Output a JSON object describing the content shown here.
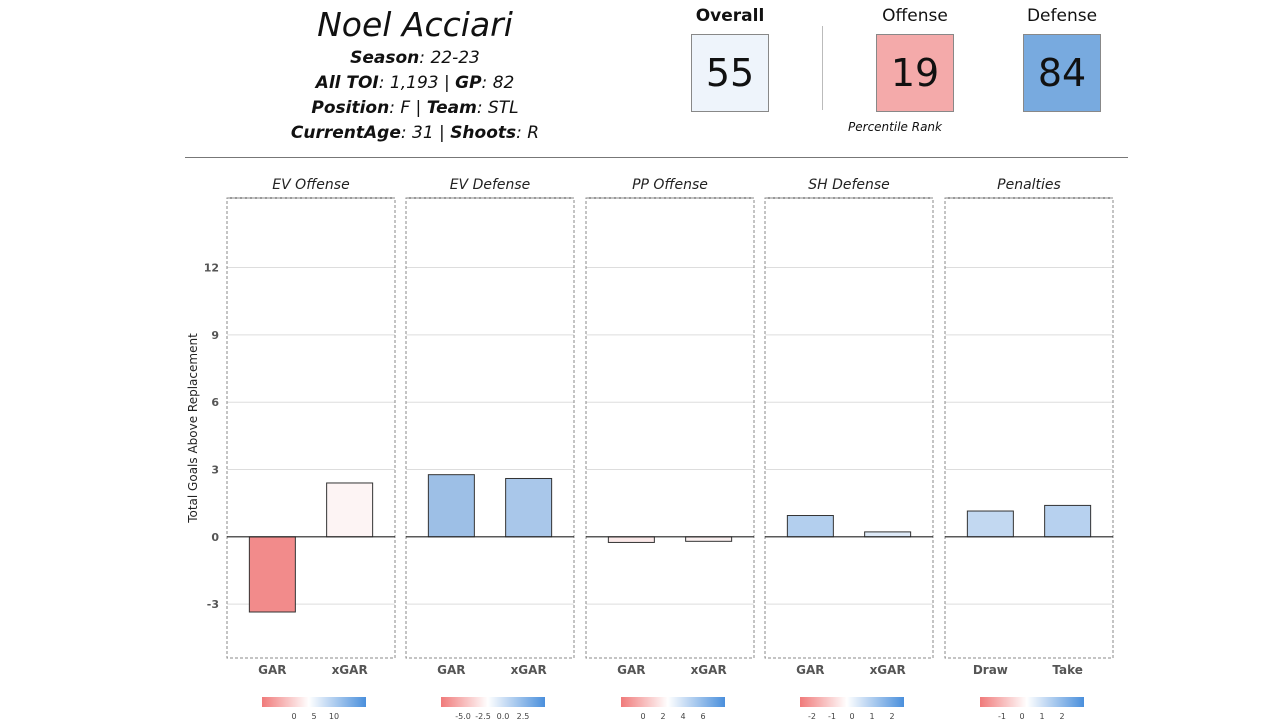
{
  "player": {
    "name": "Noel Acciari",
    "season_label": "Season",
    "season": "22-23",
    "toi_label": "All TOI",
    "toi": "1,193",
    "gp_label": "GP",
    "gp": "82",
    "position_label": "Position",
    "position": "F",
    "team_label": "Team",
    "team": "STL",
    "age_label": "CurrentAge",
    "age": "31",
    "shoots_label": "Shoots",
    "shoots": "R"
  },
  "scores": {
    "overall_label": "Overall",
    "overall": "55",
    "offense_label": "Offense",
    "offense": "19",
    "defense_label": "Defense",
    "defense": "84",
    "percentile_label": "Percentile Rank",
    "colors": {
      "overall": "#eef4fb",
      "offense": "#f4aaaa",
      "defense": "#78aadf"
    }
  },
  "chart_data": {
    "type": "bar",
    "ylabel": "Total Goals Above Replacement",
    "ylim": [
      -5.4,
      15.1
    ],
    "yticks": [
      -3,
      0,
      3,
      6,
      9,
      12
    ],
    "grid": true,
    "panels": [
      {
        "title": "EV Offense",
        "categories": [
          "GAR",
          "xGAR"
        ],
        "values": [
          -3.35,
          2.4
        ],
        "colors": [
          "#f28b8b",
          "#fdf4f4"
        ],
        "legend_ticks": [
          "0",
          "5",
          "10"
        ]
      },
      {
        "title": "EV Defense",
        "categories": [
          "GAR",
          "xGAR"
        ],
        "values": [
          2.77,
          2.6
        ],
        "colors": [
          "#9dbfe6",
          "#a9c7ea"
        ],
        "legend_ticks": [
          "-5.0",
          "-2.5",
          "0.0",
          "2.5"
        ]
      },
      {
        "title": "PP Offense",
        "categories": [
          "GAR",
          "xGAR"
        ],
        "values": [
          -0.25,
          -0.2
        ],
        "colors": [
          "#fbe9e9",
          "#fbf0f0"
        ],
        "legend_ticks": [
          "0",
          "2",
          "4",
          "6"
        ]
      },
      {
        "title": "SH Defense",
        "categories": [
          "GAR",
          "xGAR"
        ],
        "values": [
          0.95,
          0.22
        ],
        "colors": [
          "#b3cfee",
          "#dde9f7"
        ],
        "legend_ticks": [
          "-2",
          "-1",
          "0",
          "1",
          "2"
        ]
      },
      {
        "title": "Penalties",
        "categories": [
          "Draw",
          "Take"
        ],
        "values": [
          1.15,
          1.4
        ],
        "colors": [
          "#c2d8f1",
          "#b7d1ef"
        ],
        "legend_ticks": [
          "-1",
          "0",
          "1",
          "2"
        ]
      }
    ]
  }
}
